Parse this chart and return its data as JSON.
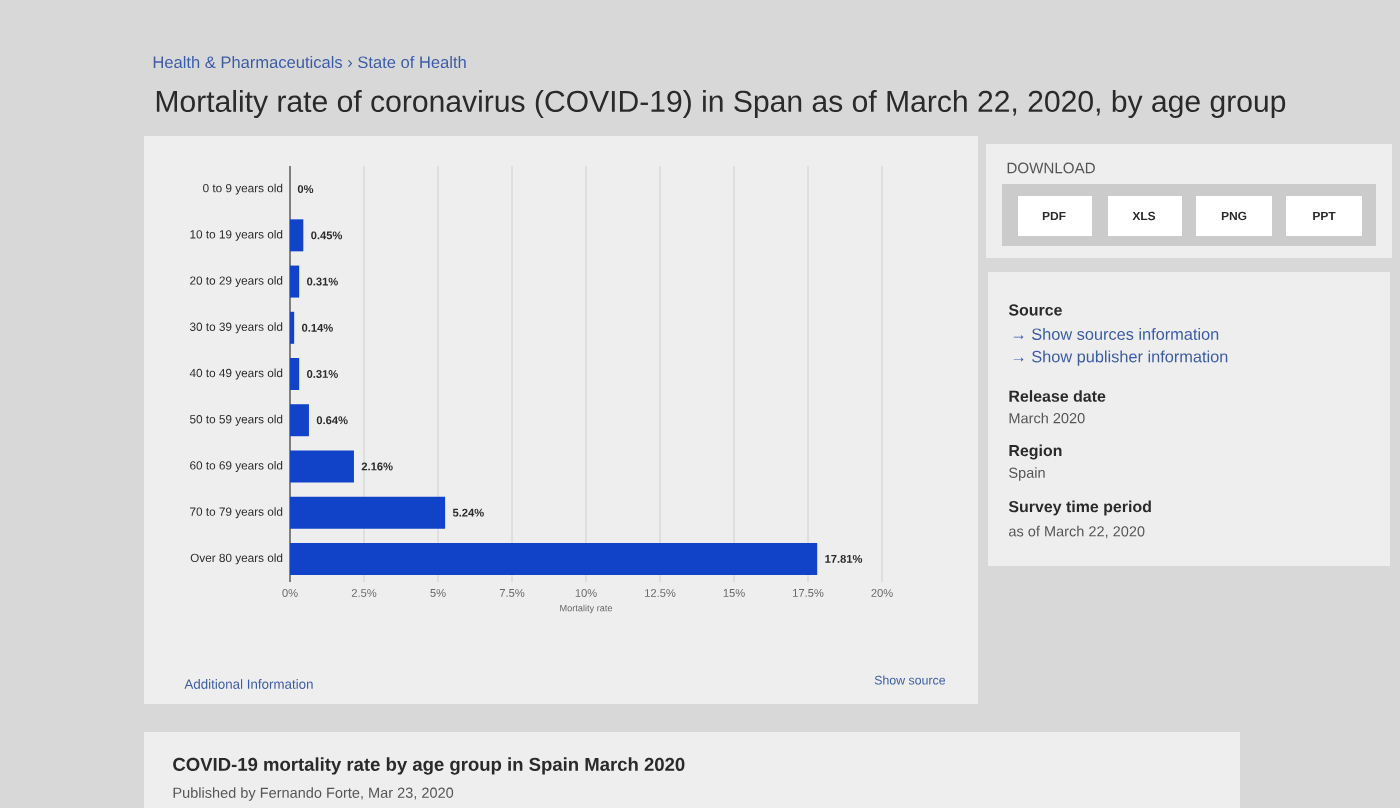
{
  "chart_data": {
    "type": "bar",
    "orientation": "horizontal",
    "title": "Mortality rate of coronavirus (COVID-19) in Span as of March 22, 2020, by age group",
    "xlabel": "Mortality rate",
    "categories": [
      "0 to 9 years old",
      "10 to 19 years old",
      "20 to 29 years old",
      "30 to 39 years old",
      "40 to 49 years old",
      "50 to 59 years old",
      "60 to 69 years old",
      "70 to 79 years old",
      "Over 80 years old"
    ],
    "values": [
      0,
      0.45,
      0.31,
      0.14,
      0.31,
      0.64,
      2.16,
      5.24,
      17.81
    ],
    "value_labels": [
      "0%",
      "0.45%",
      "0.31%",
      "0.14%",
      "0.31%",
      "0.64%",
      "2.16%",
      "5.24%",
      "17.81%"
    ],
    "color": "#1043c8",
    "xlim": [
      0,
      20
    ],
    "xticks": [
      {
        "value": 0,
        "label": "0%"
      },
      {
        "value": 2.5,
        "label": "2.5%"
      },
      {
        "value": 5,
        "label": "5%"
      },
      {
        "value": 7.5,
        "label": "7.5%"
      },
      {
        "value": 10,
        "label": "10%"
      },
      {
        "value": 12.5,
        "label": "12.5%"
      },
      {
        "value": 15,
        "label": "15%"
      },
      {
        "value": 17.5,
        "label": "17.5%"
      },
      {
        "value": 20,
        "label": "20%"
      }
    ],
    "grid": "x",
    "annotations": [
      "Health & Pharmaceuticals › State of Health",
      "DOWNLOAD",
      "PDF",
      "XLS",
      "PNG",
      "PPT",
      "Source",
      "→ Show sources information",
      "→ Show publisher information",
      "Release date",
      "March 2020",
      "Region",
      "Spain",
      "Survey time period",
      "as of March 22, 2020",
      "Additional Information",
      "Show source",
      "COVID-19 mortality rate by age group in Spain March 2020",
      "Published by Fernando Forte, Mar 23, 2020"
    ]
  }
}
